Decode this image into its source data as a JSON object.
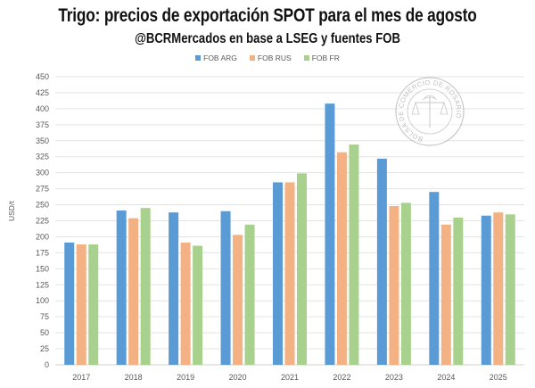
{
  "chart_data": {
    "type": "bar",
    "title": "Trigo: precios de exportación SPOT para el mes de agosto",
    "subtitle": "@BCRMercados en base a LSEG y fuentes FOB",
    "xlabel": "",
    "ylabel": "USD/t",
    "ylim": [
      0,
      450
    ],
    "ytick_step": 25,
    "grid": true,
    "legend_position": "top-center",
    "categories": [
      "2017",
      "2018",
      "2019",
      "2020",
      "2021",
      "2022",
      "2023",
      "2024",
      "2025"
    ],
    "series": [
      {
        "name": "FOB ARG",
        "color": "#5b9bd5",
        "values": [
          191,
          241,
          238,
          240,
          285,
          408,
          322,
          270,
          233
        ]
      },
      {
        "name": "FOB RUS",
        "color": "#f4b183",
        "values": [
          188,
          229,
          191,
          203,
          285,
          332,
          248,
          219,
          238
        ]
      },
      {
        "name": "FOB FR",
        "color": "#a9d18e",
        "values": [
          188,
          245,
          186,
          219,
          299,
          344,
          253,
          230,
          235
        ]
      }
    ],
    "watermark": "BOLSA DE COMERCIO DE ROSARIO"
  }
}
